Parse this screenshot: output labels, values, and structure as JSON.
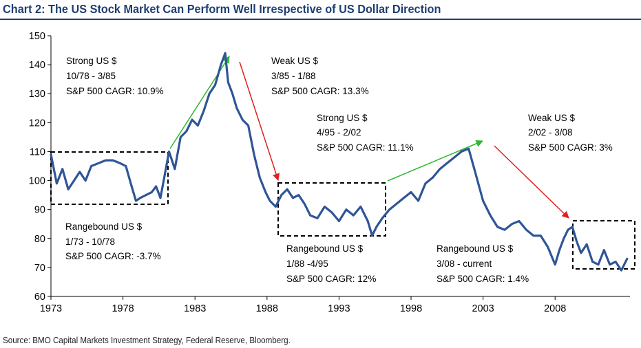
{
  "title": "Chart 2: The US Stock Market Can Perform Well Irrespective of US Dollar Direction",
  "source": "Source: BMO Capital Markets Investment Strategy, Federal Reserve, Bloomberg.",
  "colors": {
    "title": "#1f3e72",
    "series": "#2f5597",
    "up_arrow": "#2db82d",
    "down_arrow": "#e02020"
  },
  "chart_data": {
    "type": "line",
    "title": "",
    "xlabel": "",
    "ylabel": "",
    "xlim": [
      1973,
      2013.2
    ],
    "ylim": [
      60,
      150
    ],
    "grid": false,
    "xticks": [
      "1973",
      "1978",
      "1983",
      "1988",
      "1993",
      "1998",
      "2003",
      "2008"
    ],
    "yticks": [
      "60",
      "70",
      "80",
      "90",
      "100",
      "110",
      "120",
      "130",
      "140",
      "150"
    ],
    "series": [
      {
        "name": "",
        "x": [
          1973.0,
          1973.4,
          1973.8,
          1974.2,
          1974.6,
          1975.0,
          1975.4,
          1975.8,
          1976.3,
          1976.8,
          1977.3,
          1977.8,
          1978.2,
          1978.6,
          1978.9,
          1979.2,
          1979.6,
          1980.0,
          1980.3,
          1980.6,
          1980.9,
          1981.2,
          1981.6,
          1982.0,
          1982.4,
          1982.8,
          1983.2,
          1983.6,
          1984.0,
          1984.4,
          1984.8,
          1985.1,
          1985.3,
          1985.6,
          1985.9,
          1986.3,
          1986.7,
          1987.1,
          1987.5,
          1987.9,
          1988.2,
          1988.6,
          1989.0,
          1989.4,
          1989.8,
          1990.2,
          1990.6,
          1991.0,
          1991.5,
          1992.0,
          1992.5,
          1993.0,
          1993.5,
          1994.0,
          1994.5,
          1995.0,
          1995.3,
          1995.6,
          1996.0,
          1996.5,
          1997.0,
          1997.5,
          1998.0,
          1998.5,
          1999.0,
          1999.5,
          2000.0,
          2000.5,
          2001.0,
          2001.5,
          2002.0,
          2002.5,
          2003.0,
          2003.5,
          2004.0,
          2004.5,
          2005.0,
          2005.5,
          2006.0,
          2006.5,
          2007.0,
          2007.5,
          2008.0,
          2008.3,
          2008.6,
          2008.9,
          2009.2,
          2009.5,
          2009.8,
          2010.2,
          2010.6,
          2011.0,
          2011.4,
          2011.8,
          2012.2,
          2012.6,
          2013.0
        ],
        "values": [
          109,
          99,
          104,
          97,
          100,
          103,
          100,
          105,
          106,
          107,
          107,
          106,
          105,
          98,
          93,
          94,
          95,
          96,
          98,
          94,
          102,
          110,
          104,
          115,
          117,
          121,
          119,
          124,
          130,
          133,
          140,
          144,
          134,
          130,
          125,
          121,
          119,
          109,
          101,
          96,
          93,
          91,
          95,
          97,
          94,
          95,
          92,
          88,
          87,
          91,
          89,
          86,
          90,
          88,
          91,
          86,
          81,
          84,
          87,
          90,
          92,
          94,
          96,
          93,
          99,
          101,
          104,
          106,
          108,
          110,
          111,
          102,
          93,
          88,
          84,
          83,
          85,
          86,
          83,
          81,
          81,
          77,
          71,
          76,
          80,
          83,
          84,
          79,
          75,
          78,
          72,
          71,
          76,
          71,
          72,
          69,
          73
        ]
      }
    ],
    "periods": [
      {
        "label": "Strong US $",
        "range": "10/78 - 3/85",
        "cagr": "S&P 500 CAGR: 10.9%"
      },
      {
        "label": "Weak US $",
        "range": "3/85 - 1/88",
        "cagr": "S&P 500 CAGR: 13.3%"
      },
      {
        "label": "Strong US $",
        "range": "4/95 - 2/02",
        "cagr": "S&P 500 CAGR: 11.1%"
      },
      {
        "label": "Weak US $",
        "range": "2/02 - 3/08",
        "cagr": "S&P 500 CAGR: 3%"
      },
      {
        "label": "Rangebound US $",
        "range": "1/73 - 10/78",
        "cagr": "S&P 500 CAGR: -3.7%"
      },
      {
        "label": "Rangebound US $",
        "range": "1/88 -4/95",
        "cagr": "S&P 500 CAGR: 12%"
      },
      {
        "label": "Rangebound US $",
        "range": "3/08 - current",
        "cagr": "S&P 500 CAGR: 1.4%"
      }
    ]
  }
}
